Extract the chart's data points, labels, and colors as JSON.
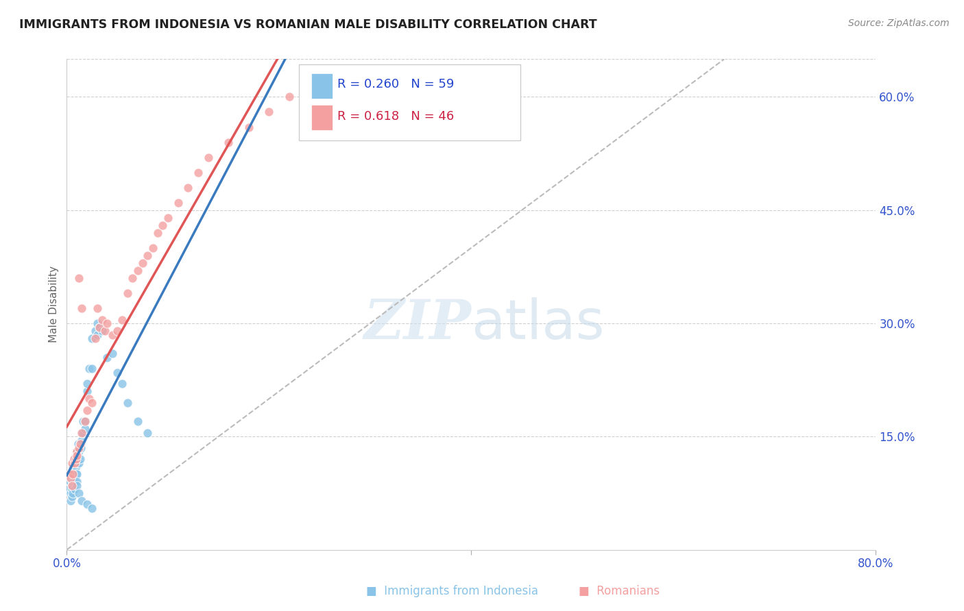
{
  "title": "IMMIGRANTS FROM INDONESIA VS ROMANIAN MALE DISABILITY CORRELATION CHART",
  "source": "Source: ZipAtlas.com",
  "ylabel": "Male Disability",
  "xmin": 0.0,
  "xmax": 0.8,
  "ymin": 0.0,
  "ymax": 0.65,
  "yticks": [
    0.15,
    0.3,
    0.45,
    0.6
  ],
  "ytick_labels": [
    "15.0%",
    "30.0%",
    "45.0%",
    "60.0%"
  ],
  "blue_color": "#89c4e8",
  "pink_color": "#f4a0a0",
  "blue_line_color": "#3a7bbf",
  "pink_line_color": "#e05555",
  "legend_blue_r": "R = 0.260",
  "legend_blue_n": "N = 59",
  "legend_pink_r": "R = 0.618",
  "legend_pink_n": "N = 46",
  "blue_scatter_x": [
    0.002,
    0.003,
    0.004,
    0.004,
    0.005,
    0.005,
    0.005,
    0.006,
    0.006,
    0.007,
    0.007,
    0.008,
    0.008,
    0.009,
    0.009,
    0.01,
    0.01,
    0.01,
    0.01,
    0.011,
    0.011,
    0.012,
    0.012,
    0.013,
    0.013,
    0.014,
    0.014,
    0.015,
    0.015,
    0.016,
    0.016,
    0.018,
    0.018,
    0.02,
    0.02,
    0.022,
    0.025,
    0.025,
    0.028,
    0.03,
    0.03,
    0.032,
    0.035,
    0.04,
    0.045,
    0.05,
    0.055,
    0.06,
    0.07,
    0.08,
    0.004,
    0.005,
    0.006,
    0.008,
    0.01,
    0.012,
    0.015,
    0.02,
    0.025
  ],
  "blue_scatter_y": [
    0.08,
    0.09,
    0.075,
    0.095,
    0.1,
    0.085,
    0.08,
    0.11,
    0.09,
    0.1,
    0.095,
    0.12,
    0.09,
    0.11,
    0.1,
    0.115,
    0.13,
    0.1,
    0.09,
    0.14,
    0.12,
    0.13,
    0.115,
    0.14,
    0.12,
    0.14,
    0.135,
    0.145,
    0.155,
    0.17,
    0.155,
    0.17,
    0.16,
    0.21,
    0.22,
    0.24,
    0.24,
    0.28,
    0.29,
    0.285,
    0.3,
    0.295,
    0.29,
    0.255,
    0.26,
    0.235,
    0.22,
    0.195,
    0.17,
    0.155,
    0.065,
    0.07,
    0.075,
    0.08,
    0.085,
    0.075,
    0.065,
    0.06,
    0.055
  ],
  "pink_scatter_x": [
    0.003,
    0.004,
    0.005,
    0.005,
    0.006,
    0.007,
    0.008,
    0.009,
    0.01,
    0.01,
    0.012,
    0.012,
    0.013,
    0.015,
    0.015,
    0.018,
    0.02,
    0.022,
    0.025,
    0.028,
    0.03,
    0.032,
    0.035,
    0.038,
    0.04,
    0.045,
    0.05,
    0.055,
    0.06,
    0.065,
    0.07,
    0.075,
    0.08,
    0.085,
    0.09,
    0.095,
    0.1,
    0.11,
    0.12,
    0.13,
    0.14,
    0.16,
    0.18,
    0.2,
    0.22,
    0.24
  ],
  "pink_scatter_y": [
    0.1,
    0.095,
    0.085,
    0.115,
    0.1,
    0.12,
    0.115,
    0.12,
    0.13,
    0.125,
    0.135,
    0.36,
    0.14,
    0.155,
    0.32,
    0.17,
    0.185,
    0.2,
    0.195,
    0.28,
    0.32,
    0.295,
    0.305,
    0.29,
    0.3,
    0.285,
    0.29,
    0.305,
    0.34,
    0.36,
    0.37,
    0.38,
    0.39,
    0.4,
    0.42,
    0.43,
    0.44,
    0.46,
    0.48,
    0.5,
    0.52,
    0.54,
    0.56,
    0.58,
    0.6,
    0.62
  ],
  "ref_line_x": [
    0.0,
    0.65
  ],
  "ref_line_y": [
    0.0,
    0.65
  ]
}
